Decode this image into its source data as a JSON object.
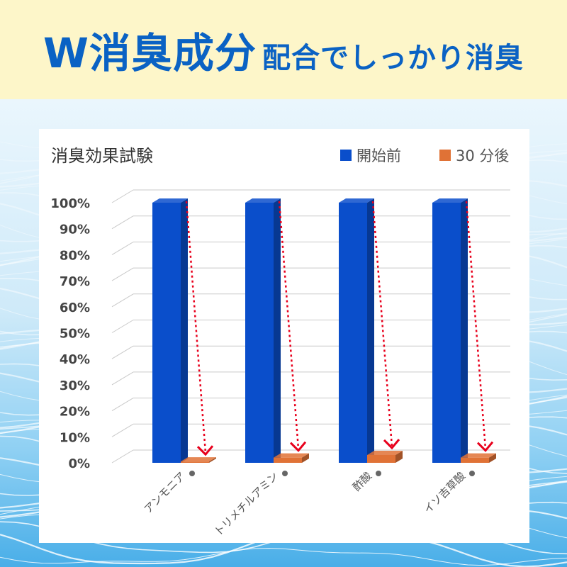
{
  "banner": {
    "title_main": "W消臭成分",
    "title_sub": "配合でしっかり消臭"
  },
  "colors": {
    "before": "#0a4ecb",
    "after": "#e07236",
    "arrow": "#e8001c",
    "banner_text": "#0a62c4",
    "banner_bg": "#fdf6c9"
  },
  "chart_data": {
    "type": "bar",
    "title": "消臭効果試験",
    "categories": [
      "アンモニア",
      "トリメチルアミン",
      "酢酸",
      "イソ吉草酸"
    ],
    "series": [
      {
        "name": "開始前",
        "values": [
          100,
          100,
          100,
          100
        ]
      },
      {
        "name": "30 分後",
        "values": [
          0.5,
          2,
          3,
          2
        ]
      }
    ],
    "y_ticks": [
      "0%",
      "10%",
      "20%",
      "30%",
      "40%",
      "50%",
      "60%",
      "70%",
      "80%",
      "90%",
      "100%"
    ],
    "ylim": [
      0,
      100
    ],
    "grid": true,
    "legend_position": "top-right",
    "three_d": true
  }
}
